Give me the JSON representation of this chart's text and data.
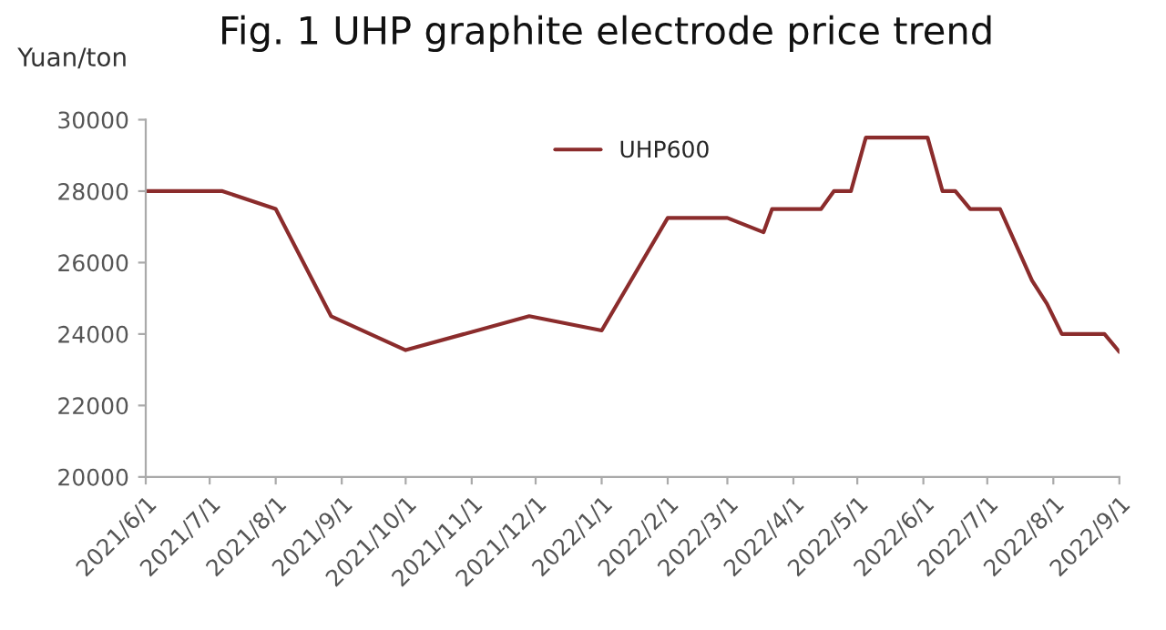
{
  "chart_data": {
    "type": "line",
    "title": "Fig. 1 UHP graphite electrode price trend",
    "ylabel": "Yuan/ton",
    "x": [
      "2021-06-01",
      "2021-07-07",
      "2021-08-01",
      "2021-08-27",
      "2021-10-01",
      "2021-11-28",
      "2022-01-01",
      "2022-02-01",
      "2022-03-01",
      "2022-03-18",
      "2022-03-22",
      "2022-04-14",
      "2022-04-20",
      "2022-04-28",
      "2022-05-05",
      "2022-06-03",
      "2022-06-10",
      "2022-06-16",
      "2022-06-23",
      "2022-07-07",
      "2022-07-22",
      "2022-07-29",
      "2022-08-05",
      "2022-08-25",
      "2022-09-01"
    ],
    "series": [
      {
        "name": "UHP600",
        "color": "#8b2c2c",
        "values": [
          28000,
          28000,
          27500,
          24500,
          23550,
          24500,
          24100,
          27250,
          27250,
          26850,
          27500,
          27500,
          28000,
          28000,
          29500,
          29500,
          28000,
          28000,
          27500,
          27500,
          25500,
          24850,
          24000,
          24000,
          23500
        ]
      }
    ],
    "xlim": [
      "2021-06-01",
      "2022-09-01"
    ],
    "xticks": [
      {
        "value": "2021-06-01",
        "label": "2021/6/1"
      },
      {
        "value": "2021-07-01",
        "label": "2021/7/1"
      },
      {
        "value": "2021-08-01",
        "label": "2021/8/1"
      },
      {
        "value": "2021-09-01",
        "label": "2021/9/1"
      },
      {
        "value": "2021-10-01",
        "label": "2021/10/1"
      },
      {
        "value": "2021-11-01",
        "label": "2021/11/1"
      },
      {
        "value": "2021-12-01",
        "label": "2021/12/1"
      },
      {
        "value": "2022-01-01",
        "label": "2022/1/1"
      },
      {
        "value": "2022-02-01",
        "label": "2022/2/1"
      },
      {
        "value": "2022-03-01",
        "label": "2022/3/1"
      },
      {
        "value": "2022-04-01",
        "label": "2022/4/1"
      },
      {
        "value": "2022-05-01",
        "label": "2022/5/1"
      },
      {
        "value": "2022-06-01",
        "label": "2022/6/1"
      },
      {
        "value": "2022-07-01",
        "label": "2022/7/1"
      },
      {
        "value": "2022-08-01",
        "label": "2022/8/1"
      },
      {
        "value": "2022-09-01",
        "label": "2022/9/1"
      }
    ],
    "ylim": [
      20000,
      30000
    ],
    "yticks": [
      20000,
      22000,
      24000,
      26000,
      28000,
      30000
    ],
    "grid": false,
    "legend": "top",
    "marker": "none",
    "line_style": "solid"
  }
}
